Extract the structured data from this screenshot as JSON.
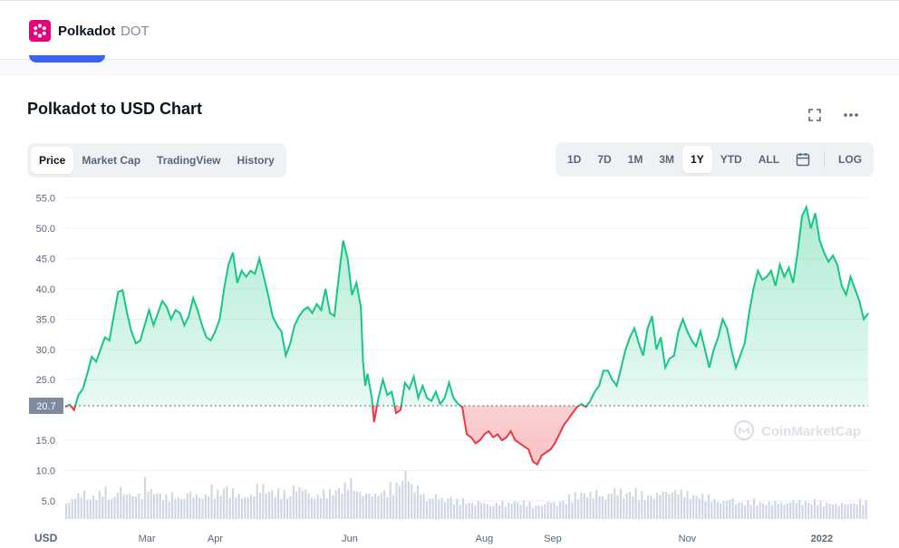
{
  "header": {
    "coin_name": "Polkadot",
    "coin_symbol": "DOT",
    "logo_icon": "polkadot-logo-icon",
    "brand_color": "#e6007a"
  },
  "chart_panel": {
    "title": "Polkadot to USD Chart",
    "fullscreen_icon": "fullscreen-icon",
    "more_icon": "more-horizontal-icon",
    "view_tabs": [
      "Price",
      "Market Cap",
      "TradingView",
      "History"
    ],
    "active_view": "Price",
    "ranges": [
      "1D",
      "7D",
      "1M",
      "3M",
      "1Y",
      "YTD",
      "ALL"
    ],
    "active_range": "1Y",
    "calendar_icon": "calendar-icon",
    "log_label": "LOG",
    "watermark": "CoinMarketCap",
    "colors": {
      "up": "#16c784",
      "down": "#ea3943",
      "reference": "#58667e",
      "volume": "#cfd6e4"
    }
  },
  "chart_data": {
    "type": "area",
    "currency_label": "USD",
    "y_ticks": [
      "55.0",
      "50.0",
      "45.0",
      "40.0",
      "35.0",
      "30.0",
      "25.0",
      "15.0",
      "10.0",
      "5.0"
    ],
    "ylim": [
      2,
      56
    ],
    "reference_price": 20.7,
    "reference_label": "20.7",
    "x_ticks": [
      {
        "label": "Mar",
        "day": 38
      },
      {
        "label": "Apr",
        "day": 69
      },
      {
        "label": "Jun",
        "day": 130
      },
      {
        "label": "Aug",
        "day": 191
      },
      {
        "label": "Sep",
        "day": 222
      },
      {
        "label": "Nov",
        "day": 283
      },
      {
        "label": "2022",
        "day": 344
      }
    ],
    "x_range_days": [
      1,
      365
    ],
    "price_points": [
      [
        1,
        20.5
      ],
      [
        3,
        20.9
      ],
      [
        5,
        20.0
      ],
      [
        7,
        22.5
      ],
      [
        9,
        23.5
      ],
      [
        11,
        26.0
      ],
      [
        13,
        28.8
      ],
      [
        15,
        28.0
      ],
      [
        17,
        30.0
      ],
      [
        19,
        32.0
      ],
      [
        21,
        31.5
      ],
      [
        23,
        35.5
      ],
      [
        25,
        39.5
      ],
      [
        27,
        39.8
      ],
      [
        29,
        36.0
      ],
      [
        31,
        33.0
      ],
      [
        33,
        31.0
      ],
      [
        35,
        31.5
      ],
      [
        37,
        34.0
      ],
      [
        39,
        36.5
      ],
      [
        41,
        34.0
      ],
      [
        43,
        36.0
      ],
      [
        45,
        38.0
      ],
      [
        47,
        37.0
      ],
      [
        49,
        35.0
      ],
      [
        51,
        36.5
      ],
      [
        53,
        36.0
      ],
      [
        55,
        34.0
      ],
      [
        57,
        35.5
      ],
      [
        59,
        38.5
      ],
      [
        61,
        36.5
      ],
      [
        63,
        34.0
      ],
      [
        65,
        32.0
      ],
      [
        67,
        31.5
      ],
      [
        69,
        33.0
      ],
      [
        71,
        35.0
      ],
      [
        73,
        40.0
      ],
      [
        75,
        44.0
      ],
      [
        77,
        46.0
      ],
      [
        79,
        41.0
      ],
      [
        81,
        43.0
      ],
      [
        83,
        42.0
      ],
      [
        85,
        43.0
      ],
      [
        87,
        42.5
      ],
      [
        89,
        45.0
      ],
      [
        91,
        42.0
      ],
      [
        93,
        39.0
      ],
      [
        95,
        35.5
      ],
      [
        97,
        34.0
      ],
      [
        99,
        33.0
      ],
      [
        101,
        29.0
      ],
      [
        103,
        31.0
      ],
      [
        105,
        34.0
      ],
      [
        107,
        35.5
      ],
      [
        109,
        36.5
      ],
      [
        111,
        37.0
      ],
      [
        113,
        36.0
      ],
      [
        115,
        37.5
      ],
      [
        117,
        36.5
      ],
      [
        119,
        40.0
      ],
      [
        121,
        36.0
      ],
      [
        123,
        35.5
      ],
      [
        125,
        42.0
      ],
      [
        127,
        48.0
      ],
      [
        129,
        45.0
      ],
      [
        131,
        39.0
      ],
      [
        133,
        41.0
      ],
      [
        135,
        37.0
      ],
      [
        136,
        28.0
      ],
      [
        137,
        24.0
      ],
      [
        138,
        26.0
      ],
      [
        140,
        22.0
      ],
      [
        141,
        18.0
      ],
      [
        143,
        22.0
      ],
      [
        145,
        25.0
      ],
      [
        147,
        22.5
      ],
      [
        149,
        23.0
      ],
      [
        151,
        19.5
      ],
      [
        153,
        20.0
      ],
      [
        155,
        24.5
      ],
      [
        157,
        23.5
      ],
      [
        159,
        25.5
      ],
      [
        161,
        22.0
      ],
      [
        163,
        24.0
      ],
      [
        165,
        22.0
      ],
      [
        167,
        21.5
      ],
      [
        169,
        23.0
      ],
      [
        171,
        21.0
      ],
      [
        173,
        22.0
      ],
      [
        175,
        24.5
      ],
      [
        177,
        22.0
      ],
      [
        179,
        21.0
      ],
      [
        181,
        20.5
      ],
      [
        183,
        16.0
      ],
      [
        185,
        15.5
      ],
      [
        187,
        14.5
      ],
      [
        189,
        15.0
      ],
      [
        191,
        16.0
      ],
      [
        193,
        16.5
      ],
      [
        195,
        15.5
      ],
      [
        197,
        16.0
      ],
      [
        199,
        15.0
      ],
      [
        201,
        15.5
      ],
      [
        203,
        16.5
      ],
      [
        205,
        15.0
      ],
      [
        207,
        14.5
      ],
      [
        209,
        14.0
      ],
      [
        211,
        13.5
      ],
      [
        213,
        11.5
      ],
      [
        215,
        11.0
      ],
      [
        217,
        12.5
      ],
      [
        219,
        13.0
      ],
      [
        221,
        13.5
      ],
      [
        223,
        14.5
      ],
      [
        225,
        16.0
      ],
      [
        227,
        17.5
      ],
      [
        229,
        18.5
      ],
      [
        231,
        19.5
      ],
      [
        233,
        20.5
      ],
      [
        235,
        21.0
      ],
      [
        237,
        20.5
      ],
      [
        239,
        21.5
      ],
      [
        241,
        23.0
      ],
      [
        243,
        24.0
      ],
      [
        245,
        26.5
      ],
      [
        247,
        26.5
      ],
      [
        249,
        25.0
      ],
      [
        251,
        24.0
      ],
      [
        253,
        27.0
      ],
      [
        255,
        30.0
      ],
      [
        257,
        32.0
      ],
      [
        259,
        33.5
      ],
      [
        261,
        31.0
      ],
      [
        263,
        29.0
      ],
      [
        265,
        33.5
      ],
      [
        267,
        35.5
      ],
      [
        269,
        30.0
      ],
      [
        271,
        32.0
      ],
      [
        273,
        27.0
      ],
      [
        275,
        28.5
      ],
      [
        277,
        29.0
      ],
      [
        279,
        33.0
      ],
      [
        281,
        35.0
      ],
      [
        283,
        33.0
      ],
      [
        285,
        31.5
      ],
      [
        287,
        30.5
      ],
      [
        289,
        33.0
      ],
      [
        291,
        30.0
      ],
      [
        293,
        27.0
      ],
      [
        295,
        30.0
      ],
      [
        297,
        32.0
      ],
      [
        299,
        35.0
      ],
      [
        301,
        33.5
      ],
      [
        303,
        30.0
      ],
      [
        305,
        27.0
      ],
      [
        307,
        29.0
      ],
      [
        309,
        31.0
      ],
      [
        311,
        36.0
      ],
      [
        313,
        40.0
      ],
      [
        315,
        43.0
      ],
      [
        317,
        41.5
      ],
      [
        319,
        42.0
      ],
      [
        321,
        43.0
      ],
      [
        323,
        40.5
      ],
      [
        325,
        44.0
      ],
      [
        327,
        42.0
      ],
      [
        329,
        43.5
      ],
      [
        331,
        41.0
      ],
      [
        333,
        46.0
      ],
      [
        335,
        52.0
      ],
      [
        337,
        53.5
      ],
      [
        339,
        50.0
      ],
      [
        341,
        52.5
      ],
      [
        343,
        48.0
      ],
      [
        345,
        46.0
      ],
      [
        347,
        44.5
      ],
      [
        349,
        45.5
      ],
      [
        351,
        44.0
      ],
      [
        353,
        40.5
      ],
      [
        355,
        39.0
      ],
      [
        357,
        42.0
      ],
      [
        359,
        40.0
      ],
      [
        361,
        38.0
      ],
      [
        363,
        35.0
      ],
      [
        365,
        36.0
      ]
    ],
    "volume_relative": [
      0.35,
      0.42,
      0.5,
      0.38,
      0.44,
      0.55,
      0.4,
      0.6,
      0.48,
      0.52,
      0.45,
      0.7,
      0.5,
      0.43,
      0.38,
      0.46,
      0.4,
      0.5,
      0.45,
      0.42,
      0.55,
      0.48,
      0.6,
      0.52,
      0.45,
      0.5,
      0.47,
      0.62,
      0.55,
      0.5,
      0.48,
      0.44,
      0.66,
      0.58,
      0.52,
      0.45,
      0.48,
      0.5,
      0.55,
      0.6,
      0.72,
      0.58,
      0.5,
      0.46,
      0.54,
      0.52,
      0.6,
      0.75,
      0.95,
      0.6,
      0.55,
      0.4,
      0.42,
      0.35,
      0.38,
      0.3,
      0.32,
      0.28,
      0.3,
      0.26,
      0.25,
      0.28,
      0.24,
      0.3,
      0.27,
      0.26,
      0.22,
      0.25,
      0.3,
      0.28,
      0.32,
      0.38,
      0.42,
      0.48,
      0.45,
      0.5,
      0.46,
      0.55,
      0.52,
      0.48,
      0.5,
      0.44,
      0.42,
      0.46,
      0.5,
      0.55,
      0.6,
      0.5,
      0.45,
      0.42,
      0.4,
      0.38,
      0.35,
      0.33,
      0.36,
      0.3,
      0.28,
      0.3,
      0.27,
      0.26,
      0.28,
      0.3,
      0.33,
      0.32,
      0.3,
      0.28,
      0.3,
      0.26,
      0.28,
      0.24,
      0.26,
      0.3,
      0.32,
      0.28
    ]
  }
}
